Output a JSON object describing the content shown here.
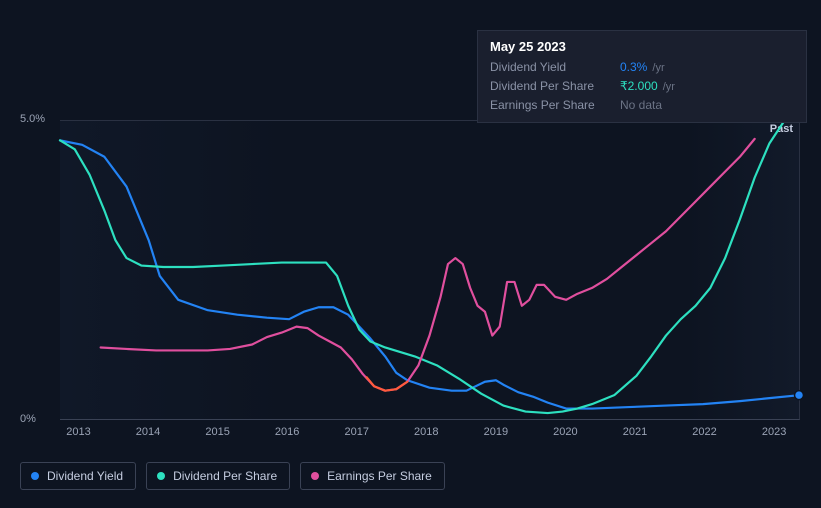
{
  "tooltip": {
    "date": "May 25 2023",
    "rows": [
      {
        "label": "Dividend Yield",
        "value": "0.3%",
        "unit": "/yr",
        "color": "#2383f4"
      },
      {
        "label": "Dividend Per Share",
        "value": "₹2.000",
        "unit": "/yr",
        "color": "#2de0c0"
      },
      {
        "label": "Earnings Per Share",
        "value": "No data",
        "unit": "",
        "color": "#6b7385"
      }
    ]
  },
  "chart": {
    "type": "line",
    "background": "#0d1421",
    "grid_border_color": "#2a3142",
    "y_axis": {
      "ticks": [
        {
          "label": "5.0%",
          "frac": 0.0
        },
        {
          "label": "0%",
          "frac": 1.0
        }
      ]
    },
    "x_axis": {
      "labels": [
        "2013",
        "2014",
        "2015",
        "2016",
        "2017",
        "2018",
        "2019",
        "2020",
        "2021",
        "2022",
        "2023"
      ],
      "min_frac": 0.025,
      "step_frac": 0.094
    },
    "past_label": "Past",
    "series": [
      {
        "name": "Dividend Yield",
        "color": "#2383f4",
        "end_dot": true,
        "points": [
          [
            0.0,
            0.065
          ],
          [
            0.03,
            0.08
          ],
          [
            0.06,
            0.12
          ],
          [
            0.09,
            0.22
          ],
          [
            0.12,
            0.4
          ],
          [
            0.135,
            0.52
          ],
          [
            0.16,
            0.6
          ],
          [
            0.2,
            0.635
          ],
          [
            0.24,
            0.65
          ],
          [
            0.28,
            0.66
          ],
          [
            0.31,
            0.665
          ],
          [
            0.33,
            0.64
          ],
          [
            0.35,
            0.625
          ],
          [
            0.37,
            0.625
          ],
          [
            0.39,
            0.65
          ],
          [
            0.42,
            0.73
          ],
          [
            0.44,
            0.79
          ],
          [
            0.455,
            0.845
          ],
          [
            0.47,
            0.87
          ],
          [
            0.5,
            0.895
          ],
          [
            0.53,
            0.905
          ],
          [
            0.55,
            0.905
          ],
          [
            0.575,
            0.875
          ],
          [
            0.59,
            0.87
          ],
          [
            0.6,
            0.885
          ],
          [
            0.62,
            0.91
          ],
          [
            0.64,
            0.925
          ],
          [
            0.66,
            0.945
          ],
          [
            0.685,
            0.965
          ],
          [
            0.72,
            0.965
          ],
          [
            0.77,
            0.96
          ],
          [
            0.82,
            0.955
          ],
          [
            0.87,
            0.95
          ],
          [
            0.92,
            0.94
          ],
          [
            0.96,
            0.93
          ],
          [
            1.0,
            0.92
          ]
        ]
      },
      {
        "name": "Dividend Per Share",
        "color": "#2de0c0",
        "end_dot": true,
        "points": [
          [
            0.0,
            0.065
          ],
          [
            0.02,
            0.095
          ],
          [
            0.04,
            0.18
          ],
          [
            0.06,
            0.3
          ],
          [
            0.075,
            0.4
          ],
          [
            0.09,
            0.46
          ],
          [
            0.11,
            0.485
          ],
          [
            0.14,
            0.49
          ],
          [
            0.18,
            0.49
          ],
          [
            0.22,
            0.485
          ],
          [
            0.26,
            0.48
          ],
          [
            0.3,
            0.475
          ],
          [
            0.34,
            0.475
          ],
          [
            0.36,
            0.475
          ],
          [
            0.375,
            0.52
          ],
          [
            0.39,
            0.62
          ],
          [
            0.405,
            0.7
          ],
          [
            0.42,
            0.74
          ],
          [
            0.44,
            0.76
          ],
          [
            0.46,
            0.775
          ],
          [
            0.48,
            0.79
          ],
          [
            0.51,
            0.82
          ],
          [
            0.54,
            0.865
          ],
          [
            0.57,
            0.915
          ],
          [
            0.6,
            0.955
          ],
          [
            0.63,
            0.975
          ],
          [
            0.66,
            0.98
          ],
          [
            0.68,
            0.975
          ],
          [
            0.7,
            0.965
          ],
          [
            0.72,
            0.95
          ],
          [
            0.75,
            0.92
          ],
          [
            0.78,
            0.855
          ],
          [
            0.8,
            0.79
          ],
          [
            0.82,
            0.72
          ],
          [
            0.84,
            0.665
          ],
          [
            0.86,
            0.62
          ],
          [
            0.88,
            0.56
          ],
          [
            0.9,
            0.46
          ],
          [
            0.92,
            0.33
          ],
          [
            0.94,
            0.19
          ],
          [
            0.96,
            0.075
          ],
          [
            0.98,
            0.0
          ],
          [
            1.0,
            -0.015
          ]
        ]
      },
      {
        "name": "Earnings Per Share",
        "color": "#e04f9e",
        "end_dot": false,
        "points": [
          [
            0.055,
            0.76
          ],
          [
            0.09,
            0.765
          ],
          [
            0.13,
            0.77
          ],
          [
            0.17,
            0.77
          ],
          [
            0.2,
            0.77
          ],
          [
            0.23,
            0.765
          ],
          [
            0.26,
            0.75
          ],
          [
            0.28,
            0.725
          ],
          [
            0.3,
            0.71
          ],
          [
            0.32,
            0.69
          ],
          [
            0.335,
            0.695
          ],
          [
            0.35,
            0.72
          ],
          [
            0.365,
            0.74
          ],
          [
            0.38,
            0.76
          ],
          [
            0.395,
            0.8
          ],
          [
            0.41,
            0.85
          ],
          [
            0.425,
            0.89
          ],
          [
            0.44,
            0.905
          ],
          [
            0.455,
            0.9
          ],
          [
            0.47,
            0.875
          ],
          [
            0.485,
            0.82
          ],
          [
            0.5,
            0.72
          ],
          [
            0.515,
            0.59
          ],
          [
            0.525,
            0.48
          ],
          [
            0.535,
            0.46
          ],
          [
            0.545,
            0.48
          ],
          [
            0.555,
            0.56
          ],
          [
            0.565,
            0.62
          ],
          [
            0.575,
            0.64
          ],
          [
            0.585,
            0.72
          ],
          [
            0.595,
            0.69
          ],
          [
            0.605,
            0.54
          ],
          [
            0.615,
            0.54
          ],
          [
            0.625,
            0.62
          ],
          [
            0.635,
            0.6
          ],
          [
            0.645,
            0.55
          ],
          [
            0.655,
            0.55
          ],
          [
            0.67,
            0.59
          ],
          [
            0.685,
            0.6
          ],
          [
            0.7,
            0.58
          ],
          [
            0.72,
            0.56
          ],
          [
            0.74,
            0.53
          ],
          [
            0.76,
            0.49
          ],
          [
            0.78,
            0.45
          ],
          [
            0.8,
            0.41
          ],
          [
            0.82,
            0.37
          ],
          [
            0.84,
            0.32
          ],
          [
            0.86,
            0.27
          ],
          [
            0.88,
            0.22
          ],
          [
            0.9,
            0.17
          ],
          [
            0.92,
            0.12
          ],
          [
            0.94,
            0.06
          ]
        ]
      },
      {
        "name": "Earnings Per Share (loss)",
        "color": "#ff5a3c",
        "end_dot": false,
        "points": [
          [
            0.415,
            0.86
          ],
          [
            0.425,
            0.89
          ],
          [
            0.44,
            0.905
          ],
          [
            0.455,
            0.9
          ],
          [
            0.47,
            0.875
          ]
        ]
      }
    ]
  },
  "legend": {
    "items": [
      {
        "label": "Dividend Yield",
        "color": "#2383f4"
      },
      {
        "label": "Dividend Per Share",
        "color": "#2de0c0"
      },
      {
        "label": "Earnings Per Share",
        "color": "#e04f9e"
      }
    ]
  }
}
